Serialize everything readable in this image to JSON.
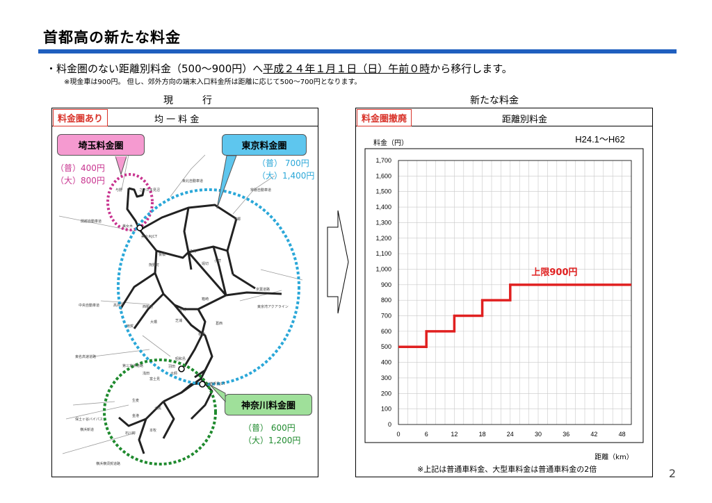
{
  "title": "首都高の新たな料金",
  "bullet": {
    "prefix": "・料金圏のない距離別料金（500～900円）へ",
    "underlined": "平成２４年１月１日（日）午前０時",
    "suffix": "から移行します。"
  },
  "note": "※現金車は900円。 但し、郊外方向の端末入口料金所は距離に応じて500～700円となります。",
  "left_column": {
    "heading": "現　行",
    "tag": "料金圏あり",
    "subheading": "均 一 料 金",
    "saitama": {
      "label": "埼玉料金圏",
      "regular": "（普）400円",
      "large": "（大）800円",
      "color": "#c8338f"
    },
    "tokyo": {
      "label": "東京料金圏",
      "regular": "（普） 700円",
      "large": "（大）1,400円",
      "color": "#2aa7d8"
    },
    "kanagawa": {
      "label": "神奈川料金圏",
      "regular": "（普） 600円",
      "large": "（大）1,200円",
      "color": "#1f8a2e"
    },
    "map_labels": [
      "さいたま見沼",
      "与野",
      "美女木",
      "美女木JCT",
      "東北自動車道",
      "常磐自動車道",
      "関越自動車道",
      "板橋",
      "熊野町",
      "江北",
      "堀切",
      "小菅",
      "中央自動車道",
      "高井戸",
      "西新宿",
      "谷町",
      "箱崎",
      "葛西",
      "東京湾アクアライン",
      "用賀",
      "大橋",
      "芝浦",
      "有明",
      "東名高速道路",
      "昭和島",
      "羽田",
      "大師",
      "浅田",
      "富士見",
      "川崎浮島JCT",
      "第三京浜道路",
      "生麦",
      "大黒",
      "金港",
      "石川町",
      "本牧",
      "横浜横須賀道路",
      "保土ヶ谷バイパス",
      "横浜新道",
      "三郷",
      "京葉道路"
    ]
  },
  "right_column": {
    "heading": "新たな料金",
    "tag": "料金圏撤廃",
    "subheading": "距離別料金",
    "footnote": "※上記は普通車料金、大型車料金は普通車料金の2倍"
  },
  "arrow_icon": "right-arrow-icon",
  "page_number": "2",
  "chart_data": {
    "type": "line",
    "title": "H24.1～H62",
    "xlabel": "距離（km）",
    "ylabel": "料金（円）",
    "x_ticks": [
      0,
      6,
      12,
      18,
      24,
      30,
      36,
      42,
      48
    ],
    "y_ticks": [
      "0",
      "100",
      "200",
      "300",
      "400",
      "500",
      "600",
      "700",
      "800",
      "900",
      "1,000",
      "1,100",
      "1,200",
      "1,300",
      "1,400",
      "1,500",
      "1,600",
      "1,700"
    ],
    "xlim": [
      0,
      50
    ],
    "ylim": [
      0,
      1700
    ],
    "grid": true,
    "step_line": true,
    "x": [
      0,
      6,
      6,
      12,
      12,
      18,
      18,
      24,
      24,
      50
    ],
    "y": [
      500,
      500,
      600,
      600,
      700,
      700,
      800,
      800,
      900,
      900
    ],
    "color": "#e02020",
    "annotation": "上限900円"
  }
}
